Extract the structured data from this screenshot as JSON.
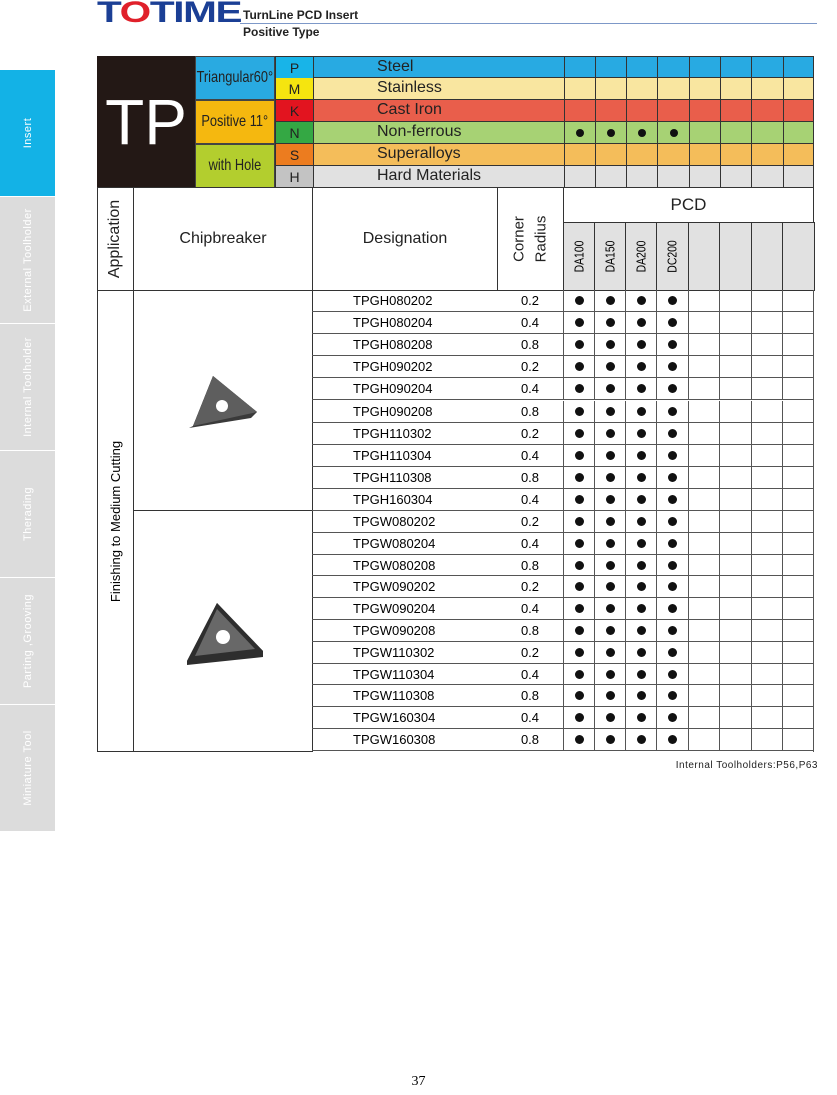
{
  "brand": {
    "logo_text_a": "T",
    "logo_text_b": "O",
    "logo_text_c": "TIME",
    "title": "TurnLine PCD Insert",
    "subtitle": "Positive Type"
  },
  "sidebar": {
    "items": [
      {
        "label": "Insert",
        "active": true
      },
      {
        "label": "External Toolholder"
      },
      {
        "label": "Internal Toolholder"
      },
      {
        "label": "Therading"
      },
      {
        "label": "Parting ,Grooving"
      },
      {
        "label": "Miniature Tool"
      }
    ]
  },
  "insert_code": "TP",
  "features": [
    {
      "label": "Triangular60°",
      "color": "#29aae1"
    },
    {
      "label": "Positive 11°",
      "color": "#f5b80f"
    },
    {
      "label": "with Hole",
      "color": "#b3ce2e"
    }
  ],
  "materials": [
    {
      "letter": "P",
      "name": "Steel",
      "letter_color": "#18b4e8",
      "color": "#28aae2",
      "marks": [
        false,
        false,
        false,
        false,
        false,
        false,
        false,
        false
      ]
    },
    {
      "letter": "M",
      "name": "Stainless",
      "letter_color": "#f5e50f",
      "color": "#f9e6a0",
      "marks": [
        false,
        false,
        false,
        false,
        false,
        false,
        false,
        false
      ]
    },
    {
      "letter": "K",
      "name": "Cast  Iron",
      "letter_color": "#e2141f",
      "color": "#e95e4b",
      "marks": [
        false,
        false,
        false,
        false,
        false,
        false,
        false,
        false
      ]
    },
    {
      "letter": "N",
      "name": "Non-ferrous",
      "letter_color": "#34a844",
      "color": "#a7d274",
      "marks": [
        true,
        true,
        true,
        true,
        false,
        false,
        false,
        false
      ]
    },
    {
      "letter": "S",
      "name": "Superalloys",
      "letter_color": "#ec7c1f",
      "color": "#f4bd5a",
      "marks": [
        false,
        false,
        false,
        false,
        false,
        false,
        false,
        false
      ]
    },
    {
      "letter": "H",
      "name": "Hard Materials",
      "letter_color": "#c3c3c3",
      "color": "#e1e1e1",
      "marks": [
        false,
        false,
        false,
        false,
        false,
        false,
        false,
        false
      ]
    }
  ],
  "table": {
    "application": "Application",
    "chipbreaker": "Chipbreaker",
    "designation": "Designation",
    "corner": "Corner",
    "radius": "Radius",
    "pcd": "PCD",
    "grades": [
      "DA100",
      "DA150",
      "DA200",
      "DC200",
      "",
      "",
      "",
      ""
    ],
    "application_value": "Finishing to Medium Cutting",
    "rows": [
      {
        "d": "TPGH080202",
        "r": "0.2"
      },
      {
        "d": "TPGH080204",
        "r": "0.4"
      },
      {
        "d": "TPGH080208",
        "r": "0.8"
      },
      {
        "d": "TPGH090202",
        "r": "0.2"
      },
      {
        "d": "TPGH090204",
        "r": "0.4"
      },
      {
        "d": "TPGH090208",
        "r": "0.8"
      },
      {
        "d": "TPGH110302",
        "r": "0.2"
      },
      {
        "d": "TPGH110304",
        "r": "0.4"
      },
      {
        "d": "TPGH110308",
        "r": "0.8"
      },
      {
        "d": "TPGH160304",
        "r": "0.4"
      },
      {
        "d": "TPGW080202",
        "r": "0.2"
      },
      {
        "d": "TPGW080204",
        "r": "0.4"
      },
      {
        "d": "TPGW080208",
        "r": "0.8"
      },
      {
        "d": "TPGW090202",
        "r": "0.2"
      },
      {
        "d": "TPGW090204",
        "r": "0.4"
      },
      {
        "d": "TPGW090208",
        "r": "0.8"
      },
      {
        "d": "TPGW110302",
        "r": "0.2"
      },
      {
        "d": "TPGW110304",
        "r": "0.4"
      },
      {
        "d": "TPGW110308",
        "r": "0.8"
      },
      {
        "d": "TPGW160304",
        "r": "0.4"
      },
      {
        "d": "TPGW160308",
        "r": "0.8"
      }
    ],
    "row_marks": [
      true,
      true,
      true,
      true,
      false,
      false,
      false,
      false
    ]
  },
  "note": "Internal Toolholders:P56,P63",
  "page_number": "37"
}
